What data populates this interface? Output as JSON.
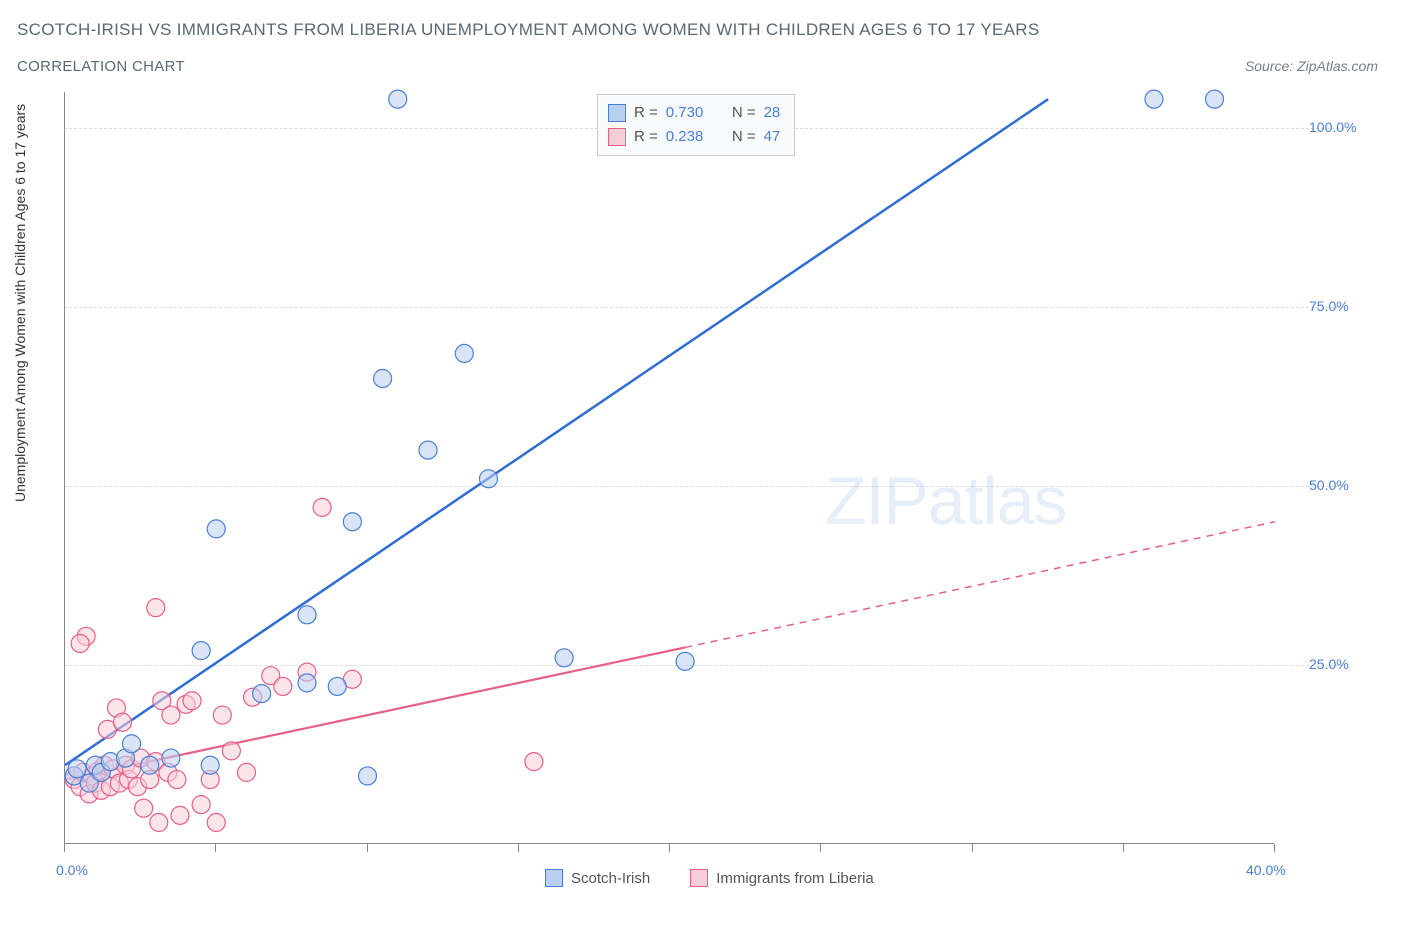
{
  "title": "SCOTCH-IRISH VS IMMIGRANTS FROM LIBERIA UNEMPLOYMENT AMONG WOMEN WITH CHILDREN AGES 6 TO 17 YEARS",
  "subtitle": "CORRELATION CHART",
  "source": "Source: ZipAtlas.com",
  "y_axis_label": "Unemployment Among Women with Children Ages 6 to 17 years",
  "watermark_bold": "ZIP",
  "watermark_thin": "atlas",
  "chart": {
    "type": "scatter",
    "xlim": [
      0,
      40
    ],
    "ylim": [
      0,
      105
    ],
    "x_ticks": [
      0,
      40
    ],
    "x_tick_labels": [
      "0.0%",
      "40.0%"
    ],
    "x_minor_ticks": [
      5,
      10,
      15,
      20,
      25,
      30,
      35
    ],
    "y_ticks": [
      25,
      50,
      75,
      100
    ],
    "y_tick_labels": [
      "25.0%",
      "50.0%",
      "75.0%",
      "100.0%"
    ],
    "background_color": "#ffffff",
    "grid_color": "#dcdcdc",
    "axis_color": "#888888",
    "tick_label_color": "#4a7fd8",
    "marker_radius": 9,
    "marker_opacity": 0.55,
    "series": [
      {
        "name": "Scotch-Irish",
        "color_fill": "#b9d0f0",
        "color_stroke": "#4a7fd8",
        "trend_line": {
          "x1": 0,
          "y1": 11,
          "x2": 32.5,
          "y2": 104,
          "color": "#2e6cd6",
          "width": 2.5,
          "dash_from_x": null
        },
        "points": [
          [
            0.3,
            9.5
          ],
          [
            0.4,
            10.5
          ],
          [
            0.8,
            8.5
          ],
          [
            1.0,
            11
          ],
          [
            1.2,
            10
          ],
          [
            1.5,
            11.5
          ],
          [
            2.0,
            12
          ],
          [
            2.2,
            14
          ],
          [
            2.8,
            11
          ],
          [
            3.5,
            12
          ],
          [
            4.5,
            27
          ],
          [
            4.8,
            11
          ],
          [
            5.0,
            44
          ],
          [
            6.5,
            21
          ],
          [
            8.0,
            22.5
          ],
          [
            8.0,
            32
          ],
          [
            9.0,
            22
          ],
          [
            9.5,
            45
          ],
          [
            10.0,
            9.5
          ],
          [
            10.5,
            65
          ],
          [
            11.0,
            104
          ],
          [
            12.0,
            55
          ],
          [
            13.2,
            68.5
          ],
          [
            14.0,
            51
          ],
          [
            16.5,
            26
          ],
          [
            20.5,
            25.5
          ],
          [
            36.0,
            104
          ],
          [
            38.0,
            104
          ]
        ]
      },
      {
        "name": "Immigrants from Liberia",
        "color_fill": "#f7cdd9",
        "color_stroke": "#e85f87",
        "trend_line": {
          "x1": 0,
          "y1": 9,
          "x2": 40,
          "y2": 45,
          "color": "#e85f87",
          "width": 2.2,
          "dash_from_x": 20.5
        },
        "points": [
          [
            0.3,
            9
          ],
          [
            0.5,
            8
          ],
          [
            0.6,
            10
          ],
          [
            0.8,
            7
          ],
          [
            0.9,
            9.5
          ],
          [
            1.0,
            8.5
          ],
          [
            1.1,
            10.2
          ],
          [
            1.2,
            7.5
          ],
          [
            1.3,
            11
          ],
          [
            1.4,
            16
          ],
          [
            1.5,
            8
          ],
          [
            1.6,
            10.5
          ],
          [
            1.7,
            19
          ],
          [
            1.8,
            8.5
          ],
          [
            1.9,
            17
          ],
          [
            0.7,
            29
          ],
          [
            2.0,
            11
          ],
          [
            2.1,
            9
          ],
          [
            2.2,
            10.5
          ],
          [
            2.4,
            8
          ],
          [
            2.5,
            12
          ],
          [
            2.6,
            5
          ],
          [
            2.8,
            9
          ],
          [
            3.0,
            11.5
          ],
          [
            3.1,
            3
          ],
          [
            3.2,
            20
          ],
          [
            3.4,
            10
          ],
          [
            3.5,
            18
          ],
          [
            3.7,
            9
          ],
          [
            3.8,
            4
          ],
          [
            4.0,
            19.5
          ],
          [
            4.2,
            20
          ],
          [
            4.5,
            5.5
          ],
          [
            4.8,
            9
          ],
          [
            5.0,
            3
          ],
          [
            5.2,
            18
          ],
          [
            5.5,
            13
          ],
          [
            6.0,
            10
          ],
          [
            6.2,
            20.5
          ],
          [
            6.8,
            23.5
          ],
          [
            7.2,
            22
          ],
          [
            8.0,
            24
          ],
          [
            8.5,
            47
          ],
          [
            9.5,
            23
          ],
          [
            3.0,
            33
          ],
          [
            0.5,
            28
          ],
          [
            15.5,
            11.5
          ]
        ]
      }
    ],
    "stats": [
      {
        "swatch_fill": "#b9d0f0",
        "swatch_border": "#4a7fd8",
        "r": "0.730",
        "n": "28"
      },
      {
        "swatch_fill": "#f7cdd9",
        "swatch_border": "#e85f87",
        "r": "0.238",
        "n": "47"
      }
    ],
    "stats_r_label": "R =",
    "stats_n_label": "N =",
    "legend": [
      {
        "swatch_fill": "#b9d0f0",
        "swatch_border": "#4a7fd8",
        "label": "Scotch-Irish"
      },
      {
        "swatch_fill": "#f7cdd9",
        "swatch_border": "#e85f87",
        "label": "Immigrants from Liberia"
      }
    ]
  }
}
